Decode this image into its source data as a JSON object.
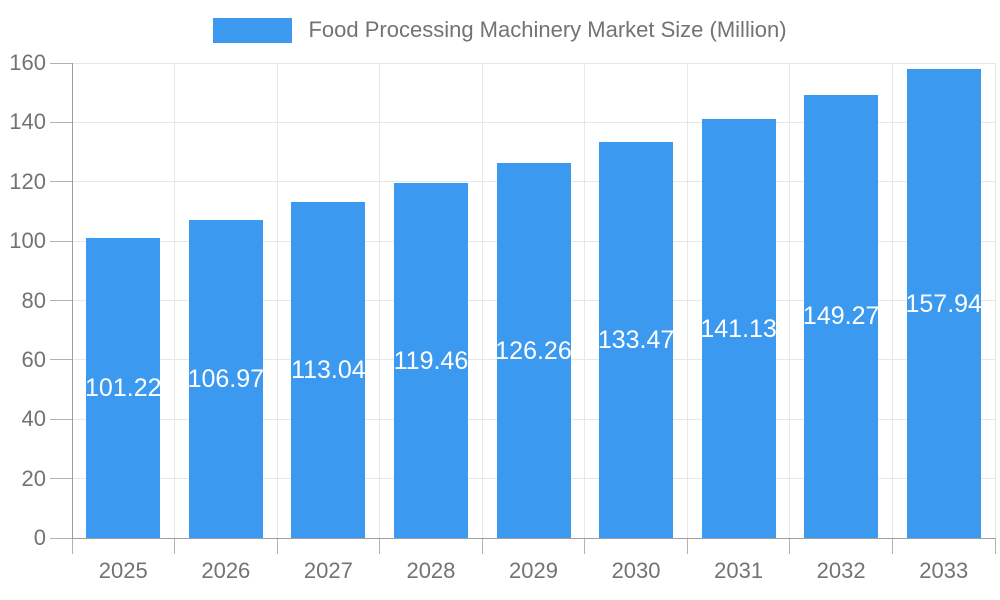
{
  "chart_data": {
    "type": "bar",
    "title": "Food Processing Machinery Market Size (Million)",
    "categories": [
      "2025",
      "2026",
      "2027",
      "2028",
      "2029",
      "2030",
      "2031",
      "2032",
      "2033"
    ],
    "values": [
      101.22,
      106.97,
      113.04,
      119.46,
      126.26,
      133.47,
      141.13,
      149.27,
      157.94
    ],
    "value_labels": [
      "101.22",
      "106.97",
      "113.04",
      "119.46",
      "126.26",
      "133.47",
      "141.13",
      "149.27",
      "157.94"
    ],
    "xlabel": "",
    "ylabel": "",
    "ylim": [
      0,
      160
    ],
    "y_ticks": [
      0,
      20,
      40,
      60,
      80,
      100,
      120,
      140,
      160
    ],
    "grid": true,
    "legend_position": "top",
    "colors": {
      "bar": "#3b99f0",
      "value_label": "#ffffff",
      "axis_text": "#737373",
      "grid_line": "#e7e7e7",
      "axis_line": "#9e9e9e",
      "tick": "#b2b2b2",
      "background": "#ffffff"
    }
  }
}
